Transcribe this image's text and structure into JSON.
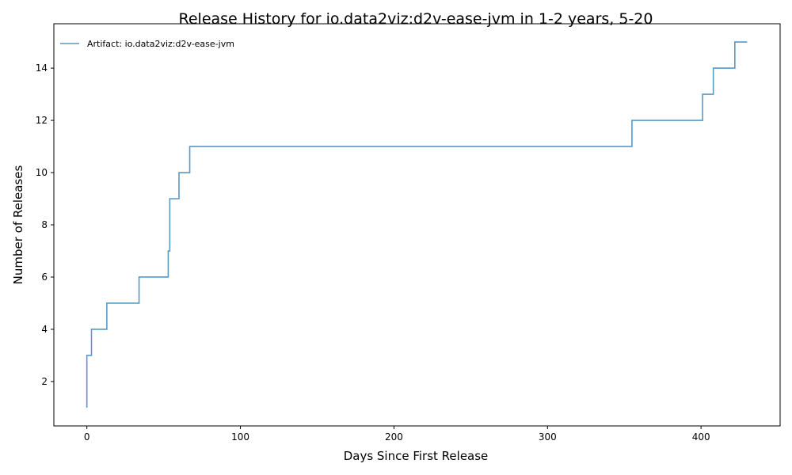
{
  "chart_data": {
    "type": "line",
    "step": "post",
    "title": "Release History for io.data2viz:d2v-ease-jvm in 1-2 years, 5-20",
    "xlabel": "Days Since First Release",
    "ylabel": "Number of Releases",
    "xlim": [
      -21.5,
      451.5
    ],
    "ylim": [
      0.3,
      15.7
    ],
    "xticks": [
      0,
      100,
      200,
      300,
      400
    ],
    "yticks": [
      2,
      4,
      6,
      8,
      10,
      12,
      14
    ],
    "grid": false,
    "legend_position": "top-left",
    "series": [
      {
        "name": "Artifact: io.data2viz:d2v-ease-jvm",
        "color": "#1f77b4",
        "x": [
          0,
          0,
          3,
          13,
          34,
          53,
          54,
          60,
          67,
          355,
          401,
          408,
          422,
          430
        ],
        "y": [
          1,
          3,
          4,
          5,
          6,
          7,
          9,
          10,
          11,
          12,
          13,
          14,
          15,
          15
        ]
      }
    ]
  }
}
